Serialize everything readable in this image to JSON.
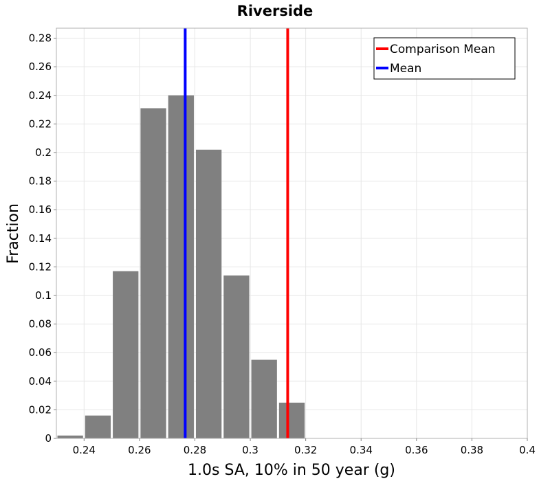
{
  "chart_data": {
    "type": "bar",
    "title": "Riverside",
    "xlabel": "1.0s SA, 10% in 50 year (g)",
    "ylabel": "Fraction",
    "xlim": [
      0.23,
      0.4
    ],
    "ylim": [
      0,
      0.287
    ],
    "xticks": [
      "0.24",
      "0.26",
      "0.28",
      "0.3",
      "0.32",
      "0.34",
      "0.36",
      "0.38",
      "0.4"
    ],
    "xtick_values": [
      0.24,
      0.26,
      0.28,
      0.3,
      0.32,
      0.34,
      0.36,
      0.38,
      0.4
    ],
    "yticks": [
      "0",
      "0.02",
      "0.04",
      "0.06",
      "0.08",
      "0.1",
      "0.12",
      "0.14",
      "0.16",
      "0.18",
      "0.2",
      "0.22",
      "0.24",
      "0.26",
      "0.28"
    ],
    "ytick_values": [
      0,
      0.02,
      0.04,
      0.06,
      0.08,
      0.1,
      0.12,
      0.14,
      0.16,
      0.18,
      0.2,
      0.22,
      0.24,
      0.26,
      0.28
    ],
    "grid": true,
    "bin_width": 0.01,
    "bins": [
      {
        "x0": 0.23,
        "x1": 0.24,
        "value": 0.002
      },
      {
        "x0": 0.24,
        "x1": 0.25,
        "value": 0.016
      },
      {
        "x0": 0.25,
        "x1": 0.26,
        "value": 0.117
      },
      {
        "x0": 0.26,
        "x1": 0.27,
        "value": 0.231
      },
      {
        "x0": 0.27,
        "x1": 0.28,
        "value": 0.24
      },
      {
        "x0": 0.28,
        "x1": 0.29,
        "value": 0.202
      },
      {
        "x0": 0.29,
        "x1": 0.3,
        "value": 0.114
      },
      {
        "x0": 0.3,
        "x1": 0.31,
        "value": 0.055
      },
      {
        "x0": 0.31,
        "x1": 0.32,
        "value": 0.025
      }
    ],
    "bar_color": "#808080",
    "lines": [
      {
        "name": "Comparison Mean",
        "x": 0.3135,
        "color": "#ff0000"
      },
      {
        "name": "Mean",
        "x": 0.2765,
        "color": "#0000ff"
      }
    ],
    "legend_position": "top-right"
  }
}
